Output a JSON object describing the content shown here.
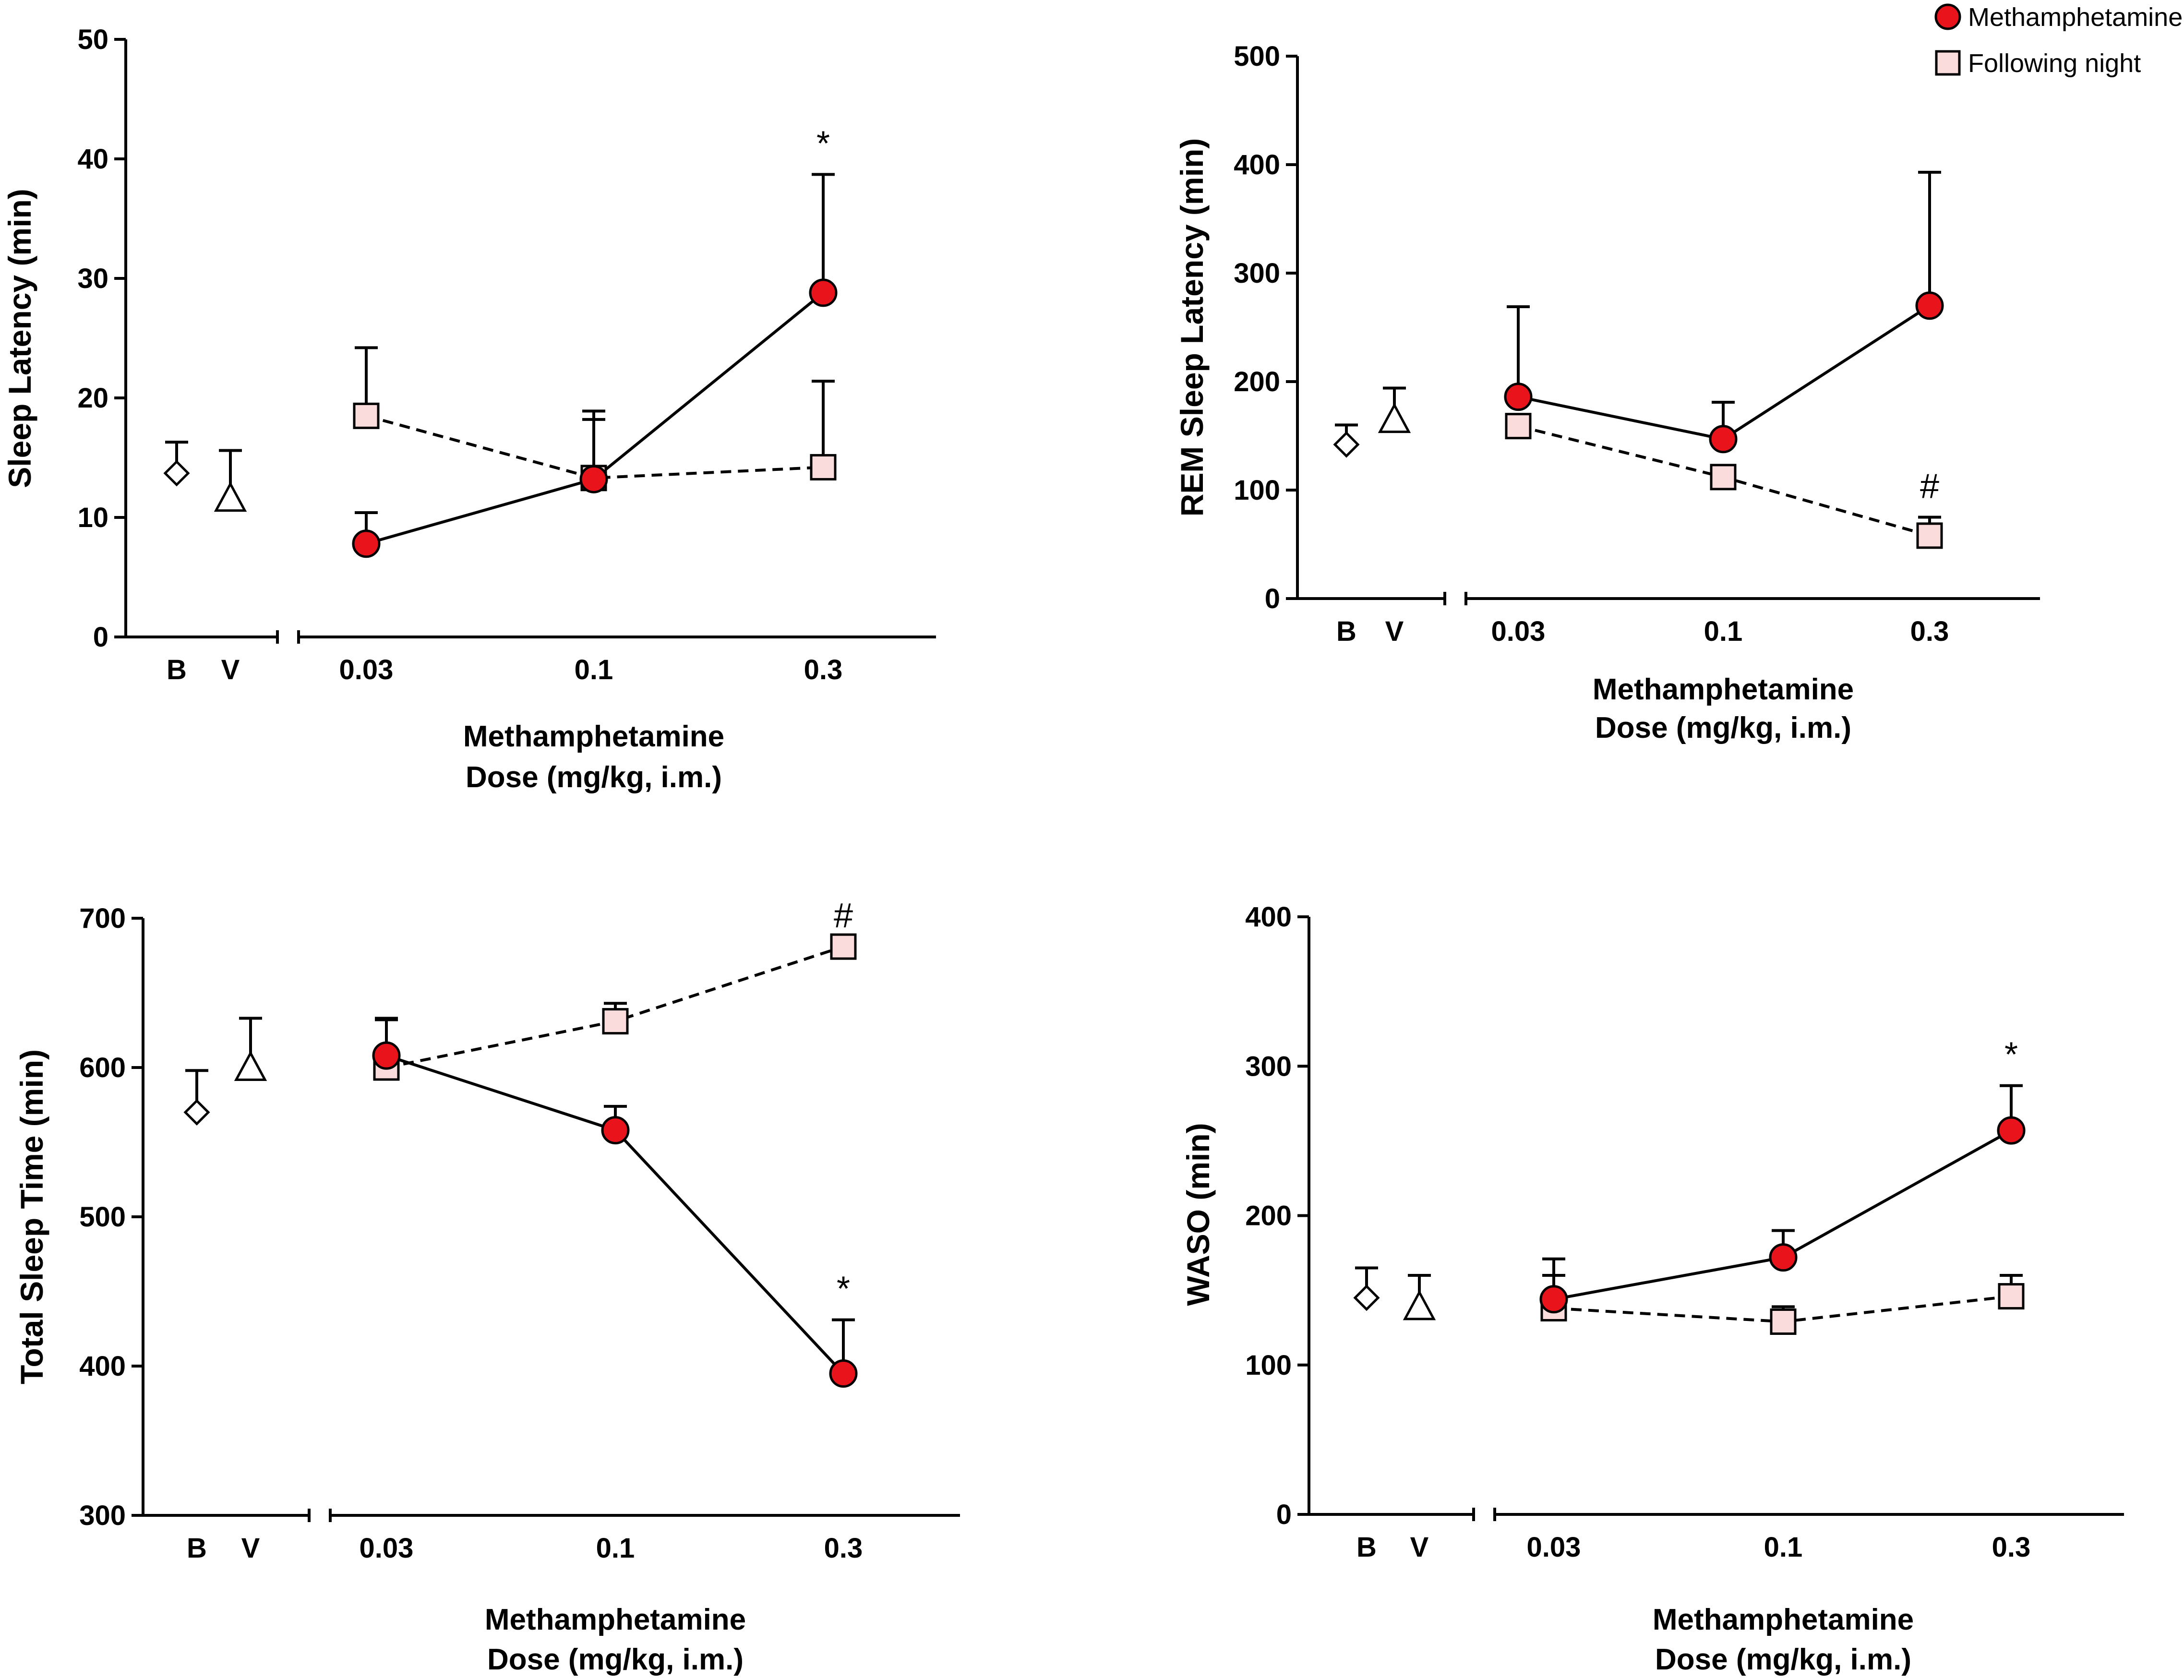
{
  "colors": {
    "methamphetamine_fill": "#e8131b",
    "following_night_fill": "#fbdcdc",
    "stroke": "#000000",
    "background": "#ffffff"
  },
  "legend": {
    "items": [
      {
        "label": "Methamphetamine",
        "marker": "circle"
      },
      {
        "label": "Following night",
        "marker": "square"
      }
    ]
  },
  "chart_data": [
    {
      "type": "scatter",
      "title": "",
      "ylabel": "Sleep Latency (min)",
      "xlabel": "Methamphetamine\nDose (mg/kg, i.m.)",
      "ylim": [
        0,
        50
      ],
      "yticks": [
        0,
        10,
        20,
        30,
        40,
        50
      ],
      "xlim": [
        -0.2,
        6.4
      ],
      "controls": [
        {
          "label": "B",
          "x": 0,
          "marker": "diamond",
          "value": 13.7,
          "err": 2.6
        },
        {
          "label": "V",
          "x": 1,
          "marker": "triangle",
          "value": 11.6,
          "err": 4.0
        }
      ],
      "dose_categories": [
        "0.03",
        "0.1",
        "0.3"
      ],
      "dose_x": [
        3.3,
        5.1,
        6.9
      ],
      "series": [
        {
          "name": "Methamphetamine",
          "marker": "circle",
          "line": "solid",
          "values": [
            7.8,
            13.2,
            28.8
          ],
          "errors": [
            2.6,
            5.0,
            9.9
          ]
        },
        {
          "name": "Following night",
          "marker": "square",
          "line": "dashed",
          "values": [
            18.5,
            13.3,
            14.2
          ],
          "errors": [
            5.7,
            5.6,
            7.2
          ]
        }
      ],
      "annotations": [
        {
          "text": "*",
          "series": 0,
          "point": 2
        }
      ]
    },
    {
      "type": "scatter",
      "title": "",
      "ylabel": "REM Sleep Latency (min)",
      "xlabel": "Methamphetamine\nDose (mg/kg, i.m.)",
      "ylim": [
        0,
        500
      ],
      "yticks": [
        0,
        100,
        200,
        300,
        400,
        500
      ],
      "controls": [
        {
          "label": "B",
          "x": 0,
          "marker": "diamond",
          "value": 142,
          "err": 18
        },
        {
          "label": "V",
          "x": 1,
          "marker": "triangle",
          "value": 165,
          "err": 29
        }
      ],
      "dose_categories": [
        "0.03",
        "0.1",
        "0.3"
      ],
      "dose_x": [
        3.1,
        7.8,
        12.5
      ],
      "series": [
        {
          "name": "Methamphetamine",
          "marker": "circle",
          "line": "solid",
          "values": [
            186,
            147,
            270
          ],
          "errors": [
            83,
            34,
            123
          ]
        },
        {
          "name": "Following night",
          "marker": "square",
          "line": "dashed",
          "values": [
            159,
            112,
            58
          ],
          "errors": [
            0,
            0,
            17
          ]
        }
      ],
      "annotations": [
        {
          "text": "#",
          "series": 1,
          "point": 2
        }
      ]
    },
    {
      "type": "scatter",
      "title": "",
      "ylabel": "Total Sleep Time (min)",
      "xlabel": "Methamphetamine\nDose (mg/kg, i.m.)",
      "ylim": [
        300,
        700
      ],
      "yticks": [
        300,
        400,
        500,
        600,
        700
      ],
      "controls": [
        {
          "label": "B",
          "x": 0,
          "marker": "diamond",
          "value": 570,
          "err": 28
        },
        {
          "label": "V",
          "x": 1,
          "marker": "triangle",
          "value": 600,
          "err": 33
        }
      ],
      "dose_categories": [
        "0.03",
        "0.1",
        "0.3"
      ],
      "dose_x": [
        3.6,
        8.3,
        12.9
      ],
      "series": [
        {
          "name": "Methamphetamine",
          "marker": "circle",
          "line": "solid",
          "values": [
            608,
            558,
            395
          ],
          "errors": [
            25,
            16,
            36
          ]
        },
        {
          "name": "Following night",
          "marker": "square",
          "line": "dashed",
          "values": [
            600,
            631,
            681
          ],
          "errors": [
            32,
            12,
            0
          ]
        }
      ],
      "annotations": [
        {
          "text": "#",
          "series": 1,
          "point": 2
        },
        {
          "text": "*",
          "series": 0,
          "point": 2
        }
      ]
    },
    {
      "type": "scatter",
      "title": "",
      "ylabel": "WASO (min)",
      "xlabel": "Methamphetamine\nDose (mg/kg, i.m.)",
      "ylim": [
        0,
        400
      ],
      "yticks": [
        0,
        100,
        200,
        300,
        400
      ],
      "controls": [
        {
          "label": "B",
          "x": 0,
          "marker": "diamond",
          "value": 145,
          "err": 20
        },
        {
          "label": "V",
          "x": 1,
          "marker": "triangle",
          "value": 139,
          "err": 21
        }
      ],
      "dose_categories": [
        "0.03",
        "0.1",
        "0.3"
      ],
      "dose_x": [
        3.6,
        8.2,
        12.8
      ],
      "series": [
        {
          "name": "Methamphetamine",
          "marker": "circle",
          "line": "solid",
          "values": [
            144,
            172,
            257
          ],
          "errors": [
            27,
            18,
            30
          ]
        },
        {
          "name": "Following night",
          "marker": "square",
          "line": "dashed",
          "values": [
            138,
            129,
            146
          ],
          "errors": [
            22,
            10,
            14
          ]
        }
      ],
      "annotations": [
        {
          "text": "*",
          "series": 0,
          "point": 2
        }
      ]
    }
  ]
}
